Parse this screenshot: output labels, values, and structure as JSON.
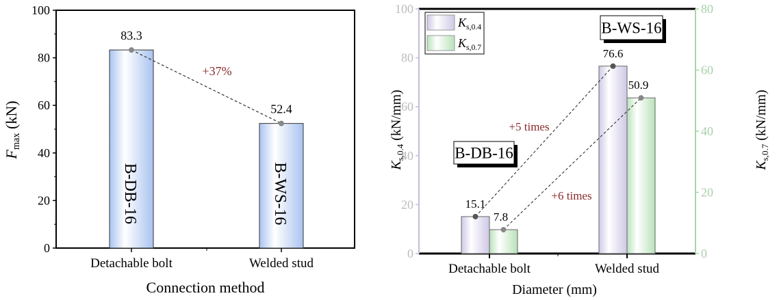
{
  "chart_data": [
    {
      "type": "bar",
      "categories": [
        "Detachable bolt",
        "Welded stud"
      ],
      "values": [
        83.3,
        52.4
      ],
      "data_labels": [
        "83.3",
        "52.4"
      ],
      "bar_labels": [
        "B-DB-16",
        "B-WS-16"
      ],
      "xlabel": "Connection method",
      "ylabel_main": "F",
      "ylabel_sub": "max",
      "ylabel_unit": " (kN)",
      "ylim": [
        0,
        100
      ],
      "yticks": [
        0,
        20,
        40,
        60,
        80,
        100
      ],
      "annotation": "+37%",
      "bar_color": "#a9c3f0",
      "annotation_color": "#8b2a2a",
      "grid": false
    },
    {
      "type": "bar",
      "categories": [
        "Detachable bolt",
        "Welded stud"
      ],
      "series": [
        {
          "name_main": "K",
          "name_sub": "s,0.4",
          "values": [
            15.1,
            76.6
          ],
          "labels": [
            "15.1",
            "76.6"
          ],
          "axis": "left",
          "color": "#cfc8e6"
        },
        {
          "name_main": "K",
          "name_sub": "s,0.7",
          "values": [
            7.8,
            50.9
          ],
          "labels": [
            "7.8",
            "50.9"
          ],
          "axis": "right",
          "color": "#b9e2b9"
        }
      ],
      "xlabel": "Diameter (mm)",
      "ylabel_left": {
        "main": "K",
        "sub": "s,0.4",
        "unit": " (kN/mm)"
      },
      "ylabel_right": {
        "main": "K",
        "sub": "s,0.7",
        "unit": " (kN/mm)"
      },
      "ylim_left": [
        0,
        100
      ],
      "yticks_left": [
        0,
        20,
        40,
        60,
        80,
        100
      ],
      "ylim_right": [
        0,
        80
      ],
      "yticks_right": [
        0,
        20,
        40,
        60,
        80
      ],
      "group_labels": [
        "B-DB-16",
        "B-WS-16"
      ],
      "annotations": [
        "+5 times",
        "+6 times"
      ],
      "left_axis_color": "#c4bcd8",
      "right_axis_color": "#a6d6a6",
      "annotation_color": "#8b2a2a",
      "legend": "top-left",
      "grid": false
    }
  ]
}
